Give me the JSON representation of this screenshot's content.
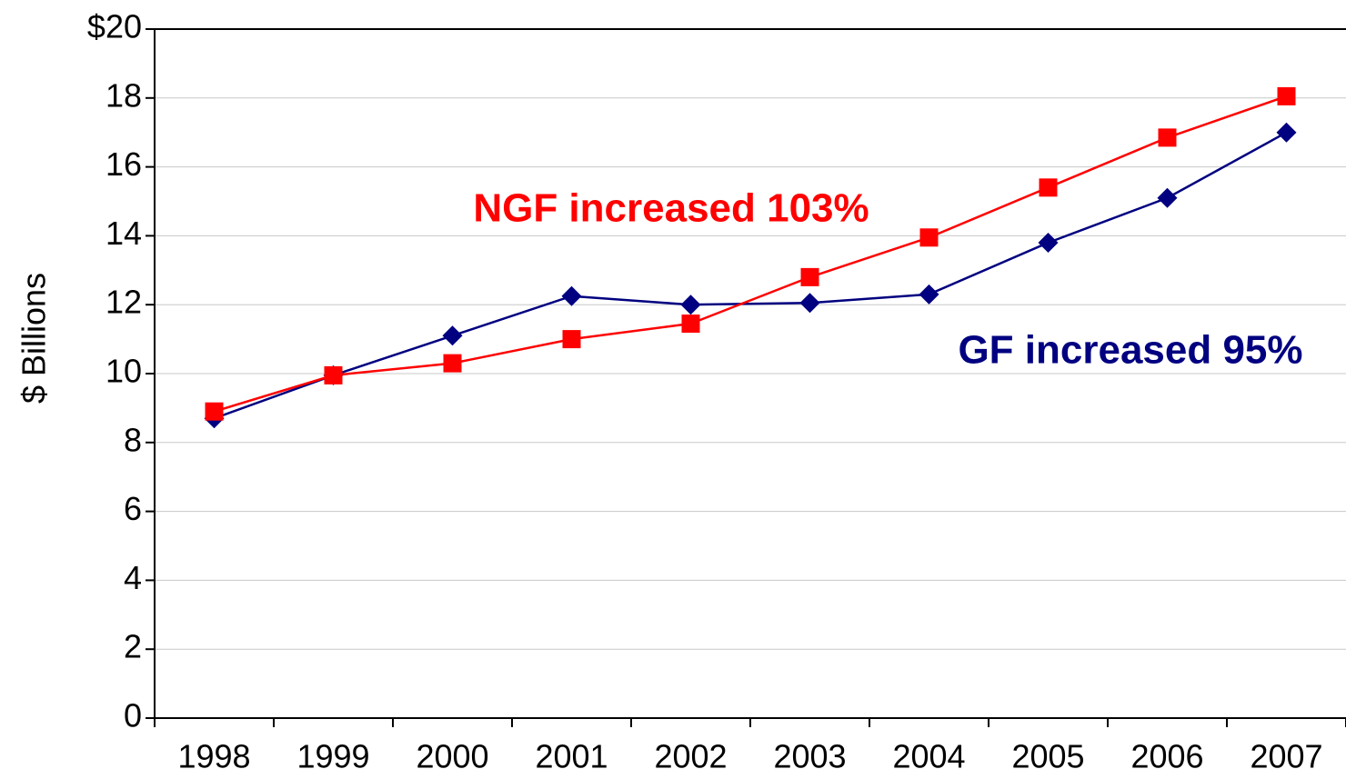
{
  "chart_data": {
    "type": "line",
    "y_label": "$ Billions",
    "categories": [
      "1998",
      "1999",
      "2000",
      "2001",
      "2002",
      "2003",
      "2004",
      "2005",
      "2006",
      "2007"
    ],
    "series": [
      {
        "color": "#000080",
        "marker": "diamond",
        "values": [
          8.7,
          9.95,
          11.1,
          12.25,
          12.0,
          12.05,
          12.3,
          13.8,
          15.1,
          17.0
        ]
      },
      {
        "color": "#ff0000",
        "marker": "square",
        "values": [
          8.9,
          9.95,
          10.3,
          11.0,
          11.45,
          12.8,
          13.95,
          15.4,
          16.85,
          18.05
        ]
      }
    ],
    "annotations": [
      {
        "text": "NGF increased 103%",
        "color": "#ff0000"
      },
      {
        "text": "GF increased 95%",
        "color": "#000080"
      }
    ],
    "ylim": [
      0,
      20
    ],
    "yticks": [
      0,
      2,
      4,
      6,
      8,
      10,
      12,
      14,
      16,
      18,
      {
        "value": 20,
        "label": "$20"
      }
    ],
    "grid": true
  }
}
